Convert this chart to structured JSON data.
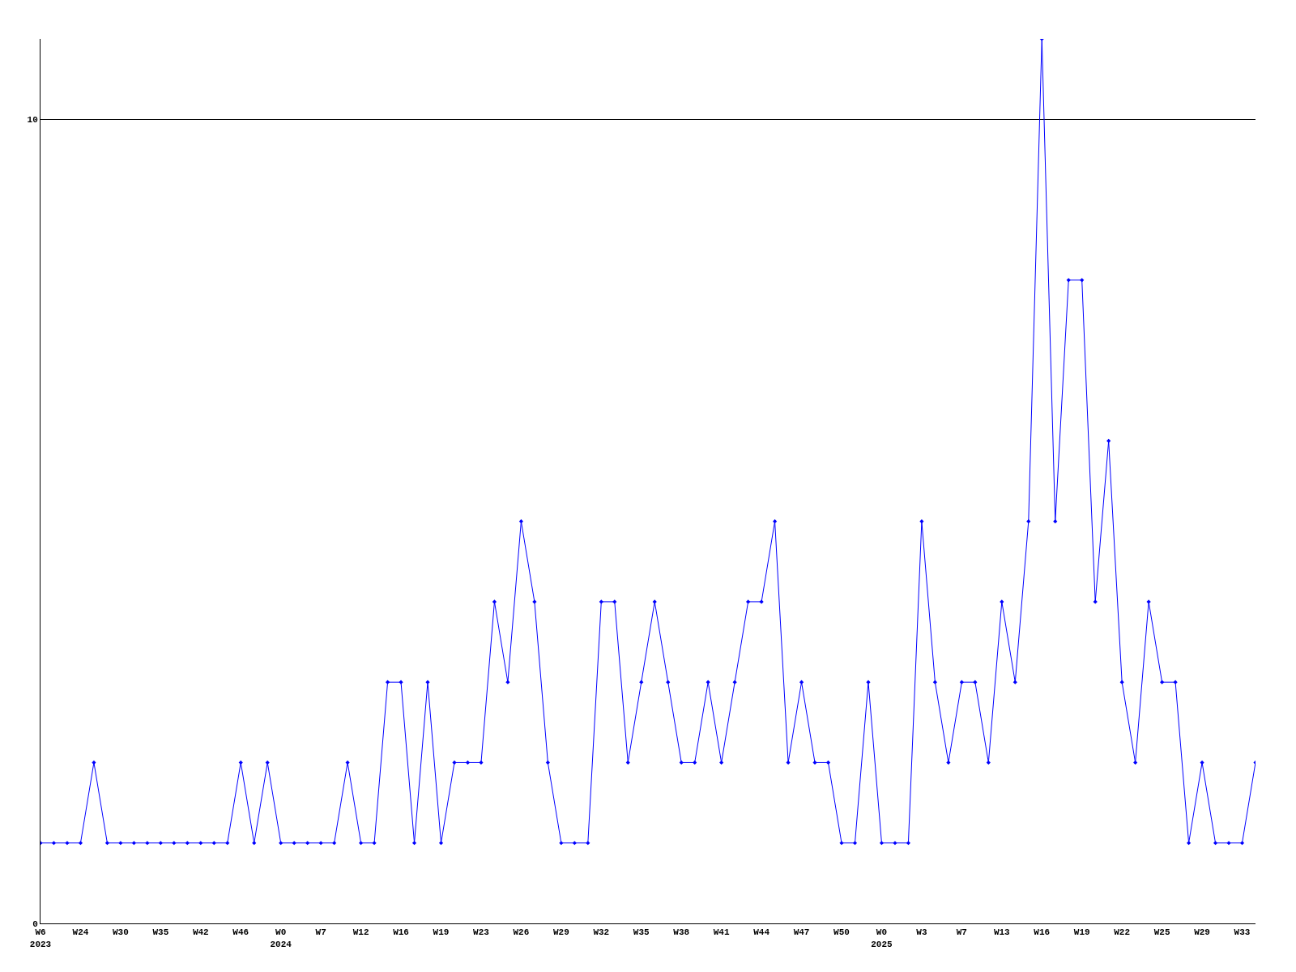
{
  "chart_data": {
    "type": "line",
    "categories": [
      "W6\n2023",
      null,
      null,
      "W24",
      null,
      null,
      "W30",
      null,
      null,
      "W35",
      null,
      null,
      "W42",
      null,
      null,
      "W46",
      null,
      null,
      "W0\n2024",
      null,
      null,
      "W7",
      null,
      null,
      "W12",
      null,
      null,
      "W16",
      null,
      null,
      "W19",
      null,
      null,
      "W23",
      null,
      null,
      "W26",
      null,
      null,
      "W29",
      null,
      null,
      "W32",
      null,
      null,
      "W35",
      null,
      null,
      "W38",
      null,
      null,
      "W41",
      null,
      null,
      "W44",
      null,
      null,
      "W47",
      null,
      null,
      "W50",
      null,
      null,
      "W0\n2025",
      null,
      null,
      "W3",
      null,
      null,
      "W7",
      null,
      null,
      "W13",
      null,
      null,
      "W16",
      null,
      null,
      "W19",
      null,
      null,
      "W22",
      null,
      null,
      "W25",
      null,
      null,
      "W29",
      null,
      null,
      "W33",
      null
    ],
    "series": [
      {
        "color": "#0000ff",
        "values": [
          1,
          1,
          1,
          1,
          2,
          1,
          1,
          1,
          1,
          1,
          1,
          1,
          1,
          1,
          1,
          2,
          1,
          2,
          1,
          1,
          1,
          1,
          1,
          2,
          1,
          1,
          3,
          3,
          1,
          3,
          1,
          2,
          2,
          2,
          4,
          3,
          5,
          4,
          2,
          1,
          1,
          1,
          4,
          4,
          2,
          3,
          4,
          3,
          2,
          2,
          3,
          2,
          3,
          4,
          4,
          5,
          2,
          3,
          2,
          2,
          1,
          1,
          3,
          1,
          1,
          1,
          5,
          3,
          2,
          3,
          3,
          2,
          4,
          3,
          5,
          11,
          5,
          8,
          8,
          4,
          6,
          3,
          2,
          4,
          3,
          3,
          1,
          2,
          1,
          1,
          1,
          2
        ]
      }
    ],
    "ylim": [
      0,
      11
    ],
    "yticks": [
      0,
      10
    ],
    "grid": "y",
    "marker": "diamond",
    "line_style": "solid"
  }
}
